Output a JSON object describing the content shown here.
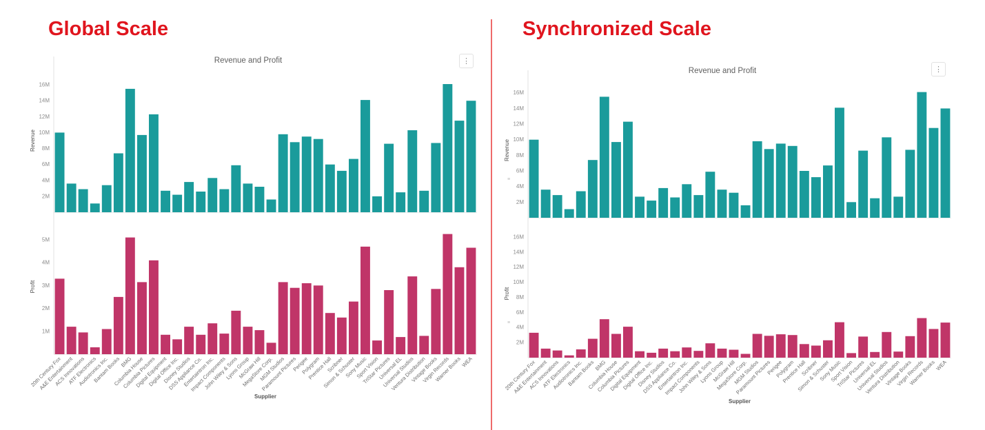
{
  "heading_color": "#e0151e",
  "divider_color": "#ee6a6a",
  "menu_icon": "kebab-vertical-dots-icon",
  "panels": [
    {
      "heading": "Global Scale"
    },
    {
      "heading": "Synchronized Scale"
    }
  ],
  "chart_data": [
    {
      "type": "bar",
      "title": "Revenue and Profit",
      "xlabel": "Supplier",
      "grid": false,
      "legend": "none",
      "categories": [
        "20th Century Fox",
        "A&E Entertainment",
        "ACS Innovations",
        "ATF Electronics",
        "Audiotronics Inc.",
        "Bantam Books",
        "BMG",
        "Columbia House",
        "Columbia Pictures",
        "Digital Equipment",
        "Digital Office Inc.",
        "Disney Studios",
        "DSS Appliance Co.",
        "Entertaintron Inc.",
        "Impact Components",
        "John Wiley & Sons",
        "Lyons Group",
        "McGraw Hill",
        "MegaStore Corp.",
        "MGM Studios",
        "Paramount Pictures",
        "Perigee",
        "Polygram",
        "Prentice Hall",
        "Scribner",
        "Simon & Schuster",
        "Sony Music",
        "Sport Vision",
        "TriStar Pictures",
        "Universal EL",
        "Universal Studios",
        "Ventura Distribution",
        "Vintage Books",
        "Virgin Records",
        "Warner Books",
        "WEA"
      ],
      "series": [
        {
          "name": "Revenue",
          "color": "#1a9b9b",
          "unit": "M",
          "axis_ticks": [
            "2M",
            "4M",
            "6M",
            "8M",
            "10M",
            "12M",
            "14M",
            "16M"
          ],
          "ylim": [
            0,
            18
          ],
          "values": [
            10.0,
            3.6,
            2.9,
            1.1,
            3.4,
            7.4,
            15.5,
            9.7,
            12.3,
            2.7,
            2.2,
            3.8,
            2.6,
            4.3,
            2.9,
            5.9,
            3.6,
            3.2,
            1.6,
            9.8,
            8.8,
            9.5,
            9.2,
            6.0,
            5.2,
            6.7,
            14.1,
            2.0,
            8.6,
            2.5,
            10.3,
            2.7,
            8.7,
            16.1,
            11.5,
            14.0
          ]
        },
        {
          "name": "Profit",
          "color": "#c03568",
          "unit": "M",
          "axis_ticks": [
            "1M",
            "2M",
            "3M",
            "4M",
            "5M"
          ],
          "ylim": [
            0,
            5.9
          ],
          "values": [
            3.3,
            1.2,
            0.95,
            0.3,
            1.1,
            2.5,
            5.1,
            3.15,
            4.1,
            0.85,
            0.65,
            1.2,
            0.85,
            1.35,
            0.9,
            1.9,
            1.2,
            1.05,
            0.5,
            3.15,
            2.9,
            3.1,
            3.0,
            1.8,
            1.6,
            2.3,
            4.7,
            0.6,
            2.8,
            0.75,
            3.4,
            0.8,
            2.85,
            5.25,
            3.8,
            4.65
          ]
        }
      ]
    },
    {
      "type": "bar",
      "title": "Revenue and Profit",
      "xlabel": "Supplier",
      "grid": false,
      "legend": "none",
      "categories": [
        "20th Century Fox",
        "A&E Entertainment",
        "ACS Innovations",
        "ATF Electronics",
        "Audiotronics Inc.",
        "Bantam Books",
        "BMG",
        "Columbia House",
        "Columbia Pictures",
        "Digital Equipment",
        "Digital Office Inc.",
        "Disney Studios",
        "DSS Appliance Co.",
        "Entertaintron Inc.",
        "Impact Components",
        "John Wiley & Sons",
        "Lyons Group",
        "McGraw Hill",
        "MegaStore Corp.",
        "MGM Studios",
        "Paramount Pictures",
        "Perigee",
        "Polygram",
        "Prentice Hall",
        "Scribner",
        "Simon & Schuster",
        "Sony Music",
        "Sport Vision",
        "TriStar Pictures",
        "Universal EL",
        "Universal Studios",
        "Ventura Distribution",
        "Vintage Books",
        "Virgin Records",
        "Warner Books",
        "WEA"
      ],
      "series": [
        {
          "name": "Revenue",
          "color": "#1a9b9b",
          "unit": "M",
          "axis_ticks": [
            "2M",
            "4M",
            "6M",
            "8M",
            "10M",
            "12M",
            "14M",
            "16M"
          ],
          "ylim": [
            0,
            17.3
          ],
          "sync_icon": true,
          "values": [
            10.0,
            3.6,
            2.9,
            1.1,
            3.4,
            7.4,
            15.5,
            9.7,
            12.3,
            2.7,
            2.2,
            3.8,
            2.6,
            4.3,
            2.9,
            5.9,
            3.6,
            3.2,
            1.6,
            9.8,
            8.8,
            9.5,
            9.2,
            6.0,
            5.2,
            6.7,
            14.1,
            2.0,
            8.6,
            2.5,
            10.3,
            2.7,
            8.7,
            16.1,
            11.5,
            14.0
          ]
        },
        {
          "name": "Profit",
          "color": "#c03568",
          "unit": "M",
          "axis_ticks": [
            "2M",
            "4M",
            "6M",
            "8M",
            "10M",
            "12M",
            "14M",
            "16M"
          ],
          "ylim": [
            0,
            17
          ],
          "sync_icon": true,
          "values": [
            3.3,
            1.2,
            0.95,
            0.3,
            1.1,
            2.5,
            5.1,
            3.15,
            4.1,
            0.85,
            0.65,
            1.2,
            0.85,
            1.35,
            0.9,
            1.9,
            1.2,
            1.05,
            0.5,
            3.15,
            2.9,
            3.1,
            3.0,
            1.8,
            1.6,
            2.3,
            4.7,
            0.6,
            2.8,
            0.75,
            3.4,
            0.8,
            2.85,
            5.25,
            3.8,
            4.65
          ]
        }
      ]
    }
  ],
  "menu_glyph": "⋮"
}
